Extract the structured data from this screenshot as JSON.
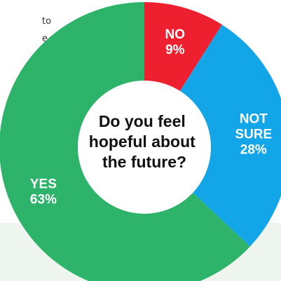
{
  "colors": {
    "no": "#ee2030",
    "not_sure": "#12a6e8",
    "yes": "#2eb36a",
    "cutout": "#ffffff"
  },
  "fragments": [
    "to",
    "e"
  ],
  "chart_data": {
    "type": "pie",
    "title": "Do you feel hopeful about the future?",
    "title_lines": [
      "Do you feel",
      "hopeful about",
      "the future?"
    ],
    "slices": [
      {
        "label_lines": [
          "NO"
        ],
        "value": 9,
        "value_text": "9%",
        "color": "#ee2030"
      },
      {
        "label_lines": [
          "NOT",
          "SURE"
        ],
        "value": 28,
        "value_text": "28%",
        "color": "#12a6e8"
      },
      {
        "label_lines": [
          "YES"
        ],
        "value": 63,
        "value_text": "63%",
        "color": "#2eb36a"
      }
    ]
  }
}
